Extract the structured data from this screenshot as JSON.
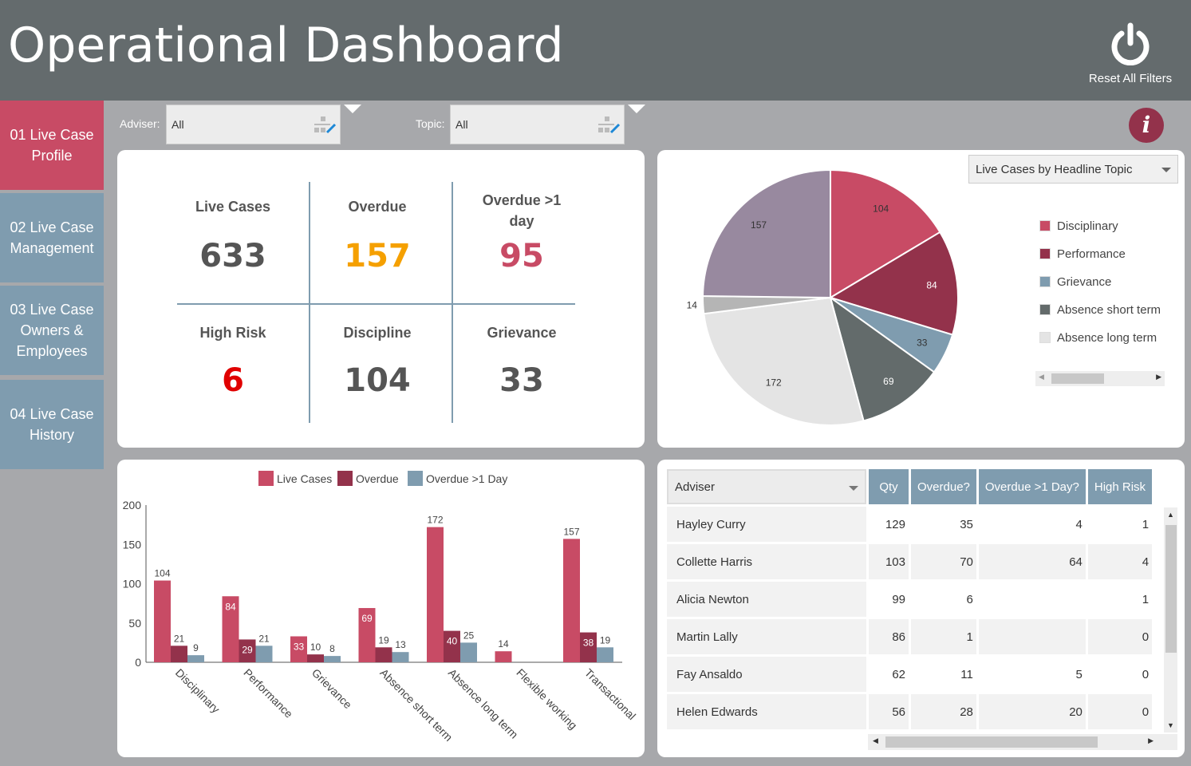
{
  "header": {
    "title": "Operational Dashboard",
    "reset_label": "Reset All Filters"
  },
  "sidebar": {
    "items": [
      {
        "label": "01 Live Case Profile",
        "active": true
      },
      {
        "label": "02 Live Case Management"
      },
      {
        "label": "03 Live Case Owners & Employees"
      },
      {
        "label": "04 Live Case History"
      }
    ]
  },
  "filters": {
    "adviser_label": "Adviser:",
    "adviser_value": "All",
    "topic_label": "Topic:",
    "topic_value": "All"
  },
  "kpis": [
    {
      "label": "Live Cases",
      "value": "633",
      "color": "#555555"
    },
    {
      "label": "Overdue",
      "value": "157",
      "color": "#f5a000"
    },
    {
      "label": "Overdue >1 day",
      "value": "95",
      "color": "#c84b65"
    },
    {
      "label": "High Risk",
      "value": "6",
      "color": "#e00000"
    },
    {
      "label": "Discipline",
      "value": "104",
      "color": "#555555"
    },
    {
      "label": "Grievance",
      "value": "33",
      "color": "#555555"
    }
  ],
  "pie": {
    "selector": "Live Cases by Headline Topic",
    "legend": [
      {
        "label": "Disciplinary",
        "color": "#c84b65"
      },
      {
        "label": "Performance",
        "color": "#93324b"
      },
      {
        "label": "Grievance",
        "color": "#7f9caf"
      },
      {
        "label": "Absence short term",
        "color": "#636b6b"
      },
      {
        "label": "Absence long term",
        "color": "#e4e4e4"
      }
    ]
  },
  "chart_data": [
    {
      "type": "pie",
      "slices": [
        {
          "label": "Disciplinary",
          "value": 104,
          "color": "#c84b65"
        },
        {
          "label": "Performance",
          "value": 84,
          "color": "#93324b"
        },
        {
          "label": "Grievance",
          "value": 33,
          "color": "#7f9caf"
        },
        {
          "label": "Absence short term",
          "value": 69,
          "color": "#636b6b"
        },
        {
          "label": "Absence long term",
          "value": 172,
          "color": "#e4e4e4"
        },
        {
          "label": "Flexible working",
          "value": 14,
          "color": "#b5b5b5"
        },
        {
          "label": "Transactional",
          "value": 157,
          "color": "#98899f"
        }
      ]
    },
    {
      "type": "bar",
      "categories": [
        "Disciplinary",
        "Performance",
        "Grievance",
        "Absence short term",
        "Absence long term",
        "Flexible working",
        "Transactional"
      ],
      "series": [
        {
          "name": "Live Cases",
          "color": "#c84b65",
          "values": [
            104,
            84,
            33,
            69,
            172,
            14,
            157
          ]
        },
        {
          "name": "Overdue",
          "color": "#93324b",
          "values": [
            21,
            29,
            10,
            19,
            40,
            null,
            38
          ]
        },
        {
          "name": "Overdue >1 Day",
          "color": "#7f9caf",
          "values": [
            9,
            21,
            8,
            13,
            25,
            null,
            19
          ]
        }
      ],
      "ylim": [
        0,
        200
      ],
      "yticks": [
        0,
        50,
        100,
        150,
        200
      ],
      "legend": "top"
    }
  ],
  "table": {
    "columns": [
      "Adviser",
      "Qty",
      "Overdue?",
      "Overdue >1 Day?",
      "High Risk"
    ],
    "rows": [
      [
        "Hayley Curry",
        "129",
        "35",
        "4",
        "1"
      ],
      [
        "Collette Harris",
        "103",
        "70",
        "64",
        "4"
      ],
      [
        "Alicia Newton",
        "99",
        "6",
        "",
        "1"
      ],
      [
        "Martin Lally",
        "86",
        "1",
        "",
        "0"
      ],
      [
        "Fay Ansaldo",
        "62",
        "11",
        "5",
        "0"
      ],
      [
        "Helen Edwards",
        "56",
        "28",
        "20",
        "0"
      ]
    ]
  }
}
